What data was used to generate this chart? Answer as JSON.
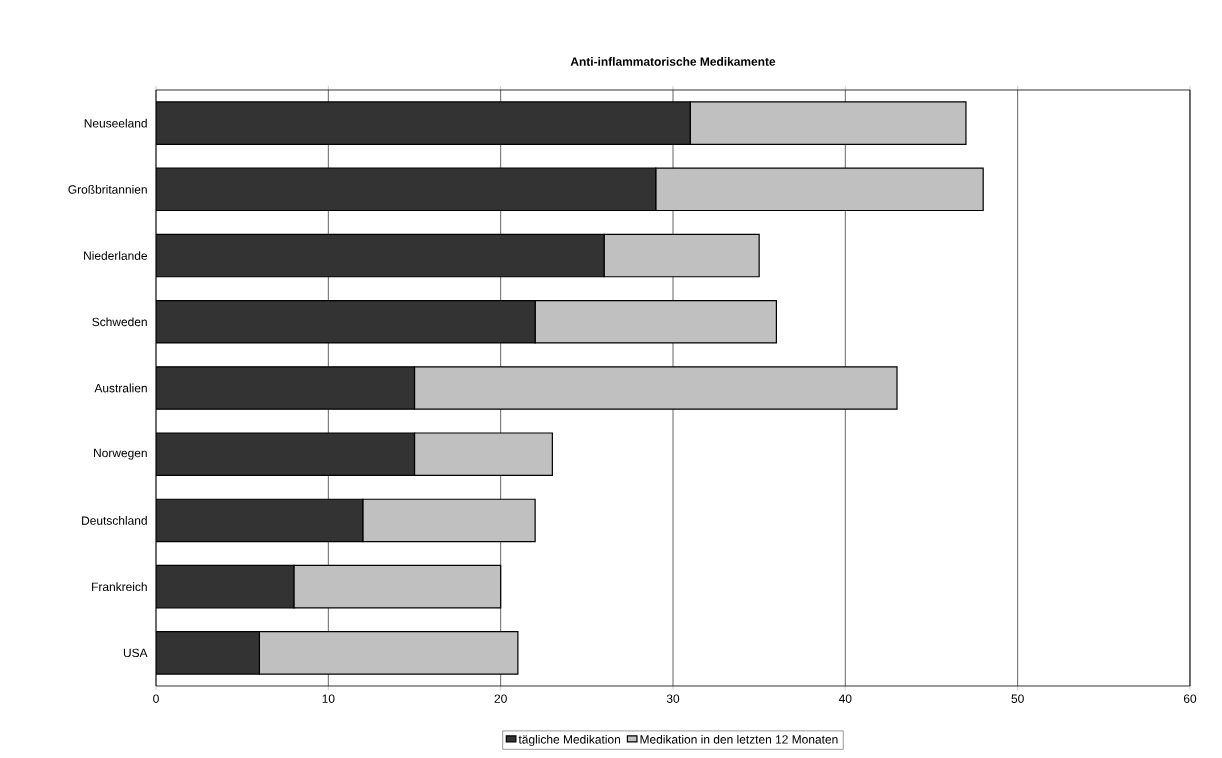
{
  "chart_data": {
    "type": "bar",
    "orientation": "horizontal",
    "stacked": true,
    "title": "Anti-inflammatorische Medikamente",
    "categories": [
      "Neuseeland",
      "Großbritannien",
      "Niederlande",
      "Schweden",
      "Australien",
      "Norwegen",
      "Deutschland",
      "Frankreich",
      "USA"
    ],
    "series": [
      {
        "name": "tägliche Medikation",
        "color": "#333333",
        "values": [
          31,
          29,
          26,
          22,
          15,
          15,
          12,
          8,
          6
        ]
      },
      {
        "name": "Medikation in den letzten 12 Monaten",
        "color": "#c0c0c0",
        "values": [
          16,
          19,
          9,
          14,
          28,
          8,
          10,
          12,
          15
        ]
      }
    ],
    "xlim": [
      0,
      60
    ],
    "xticks": [
      0,
      10,
      20,
      30,
      40,
      50,
      60
    ],
    "grid": "x",
    "legend": "bottom"
  }
}
